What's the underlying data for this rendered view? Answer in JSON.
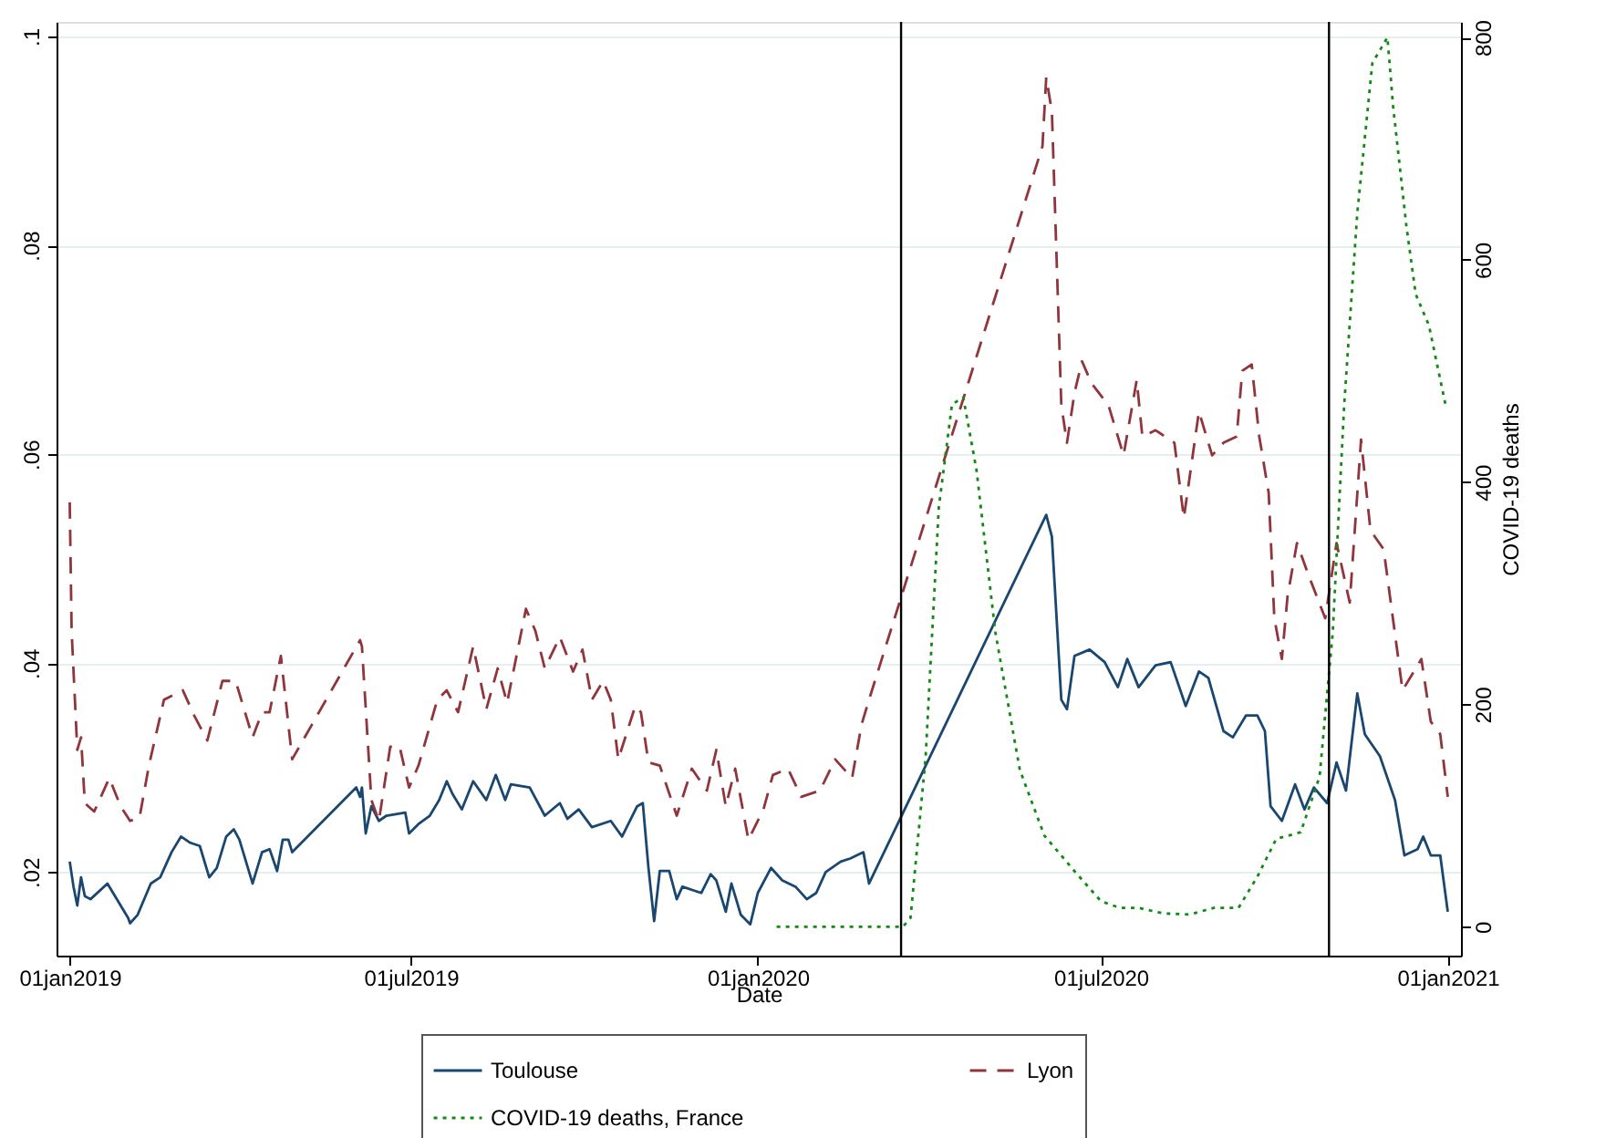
{
  "chart_data": {
    "type": "line",
    "xlabel": "Date",
    "y2label": "COVID-19 deaths",
    "xlim": [
      "2018-12-25",
      "2021-01-08"
    ],
    "xticks": [
      {
        "value": "2019-01-01",
        "label": "01jan2019"
      },
      {
        "value": "2019-07-01",
        "label": "01jul2019"
      },
      {
        "value": "2020-01-01",
        "label": "01jan2020"
      },
      {
        "value": "2020-07-01",
        "label": "01jul2020"
      },
      {
        "value": "2021-01-01",
        "label": "01jan2021"
      }
    ],
    "ylim": [
      0.012,
      0.1014
    ],
    "yticks": [
      {
        "value": 0.02,
        "label": ".02"
      },
      {
        "value": 0.04,
        "label": ".04"
      },
      {
        "value": 0.06,
        "label": ".06"
      },
      {
        "value": 0.08,
        "label": ".08"
      },
      {
        "value": 0.1,
        "label": ".1"
      }
    ],
    "y2lim": [
      -26,
      814
    ],
    "y2ticks": [
      0,
      200,
      400,
      600,
      800
    ],
    "grid": "y",
    "legend": "bottom",
    "ref_lines": [
      {
        "axis": "x",
        "value": "2020-03-17",
        "color": "#000000"
      },
      {
        "axis": "x",
        "value": "2020-10-30",
        "color": "#000000"
      }
    ],
    "series": [
      {
        "name": "Toulouse",
        "color": "#1a476f",
        "line_style": "solid",
        "x": [
          "2019-01-01",
          "2019-01-03",
          "2019-01-05",
          "2019-01-07",
          "2019-01-09",
          "2019-01-12",
          "2019-01-21",
          "2019-01-24",
          "2019-02-01",
          "2019-02-02",
          "2019-02-06",
          "2019-02-13",
          "2019-02-18",
          "2019-02-24",
          "2019-03-01",
          "2019-03-06",
          "2019-03-11",
          "2019-03-16",
          "2019-03-20",
          "2019-03-25",
          "2019-03-29",
          "2019-04-01",
          "2019-04-08",
          "2019-04-13",
          "2019-04-17",
          "2019-04-21",
          "2019-04-24",
          "2019-04-27",
          "2019-04-29",
          "2019-06-02",
          "2019-06-04",
          "2019-06-05",
          "2019-06-07",
          "2019-06-10",
          "2019-06-14",
          "2019-06-18",
          "2019-06-28",
          "2019-06-30",
          "2019-07-05",
          "2019-07-11",
          "2019-07-16",
          "2019-07-20",
          "2019-07-23",
          "2019-07-28",
          "2019-08-03",
          "2019-08-10",
          "2019-08-15",
          "2019-08-20",
          "2019-08-23",
          "2019-09-02",
          "2019-09-10",
          "2019-09-18",
          "2019-09-22",
          "2019-09-28",
          "2019-10-05",
          "2019-10-15",
          "2019-10-21",
          "2019-10-29",
          "2019-11-01",
          "2019-11-04",
          "2019-11-07",
          "2019-11-10",
          "2019-11-15",
          "2019-11-19",
          "2019-11-22",
          "2019-12-02",
          "2019-12-07",
          "2019-12-10",
          "2019-12-15",
          "2019-12-18",
          "2019-12-23",
          "2019-12-28",
          "2020-01-01",
          "2020-01-08",
          "2020-01-14",
          "2020-01-21",
          "2020-01-27",
          "2020-02-01",
          "2020-02-06",
          "2020-02-14",
          "2020-02-19",
          "2020-02-26",
          "2020-02-29",
          "2020-06-02",
          "2020-06-05",
          "2020-06-10",
          "2020-06-13",
          "2020-06-17",
          "2020-06-25",
          "2020-07-03",
          "2020-07-10",
          "2020-07-15",
          "2020-07-21",
          "2020-07-30",
          "2020-08-07",
          "2020-08-15",
          "2020-08-22",
          "2020-08-27",
          "2020-09-04",
          "2020-09-09",
          "2020-09-16",
          "2020-09-22",
          "2020-09-26",
          "2020-09-29",
          "2020-10-05",
          "2020-10-12",
          "2020-10-17",
          "2020-10-22",
          "2020-10-29",
          "2020-11-03",
          "2020-11-08",
          "2020-11-14",
          "2020-11-18",
          "2020-11-26",
          "2020-12-04",
          "2020-12-09",
          "2020-12-16",
          "2020-12-19",
          "2020-12-23",
          "2020-12-28",
          "2021-01-01"
        ],
        "values": [
          0.021,
          0.0186,
          0.0168,
          0.0195,
          0.0177,
          0.0174,
          0.0189,
          0.018,
          0.0156,
          0.0151,
          0.0159,
          0.0189,
          0.0195,
          0.0219,
          0.0234,
          0.0228,
          0.0225,
          0.0195,
          0.0204,
          0.0234,
          0.0241,
          0.0231,
          0.0189,
          0.0219,
          0.0222,
          0.0201,
          0.0231,
          0.0231,
          0.0219,
          0.0281,
          0.0272,
          0.0281,
          0.0237,
          0.0263,
          0.0249,
          0.0254,
          0.0257,
          0.0237,
          0.0246,
          0.0254,
          0.0269,
          0.0287,
          0.0275,
          0.026,
          0.0287,
          0.0269,
          0.0293,
          0.0269,
          0.0284,
          0.0281,
          0.0254,
          0.0266,
          0.0251,
          0.026,
          0.0243,
          0.0249,
          0.0234,
          0.0263,
          0.0266,
          0.0204,
          0.0153,
          0.0201,
          0.0201,
          0.0174,
          0.0186,
          0.018,
          0.0198,
          0.0192,
          0.0162,
          0.0189,
          0.0159,
          0.015,
          0.018,
          0.0204,
          0.0192,
          0.0186,
          0.0174,
          0.018,
          0.02,
          0.021,
          0.0213,
          0.0219,
          0.0189,
          0.0542,
          0.0521,
          0.0365,
          0.0356,
          0.0407,
          0.0413,
          0.0401,
          0.0377,
          0.0404,
          0.0377,
          0.0398,
          0.0401,
          0.0359,
          0.0392,
          0.0386,
          0.0335,
          0.0329,
          0.035,
          0.035,
          0.0335,
          0.0263,
          0.0249,
          0.0284,
          0.026,
          0.0281,
          0.0266,
          0.0305,
          0.0278,
          0.0371,
          0.0332,
          0.0311,
          0.0269,
          0.0216,
          0.0222,
          0.0234,
          0.0216,
          0.0216,
          0.0162
        ]
      },
      {
        "name": "Lyon",
        "color": "#90353b",
        "line_style": "dashed",
        "x": [
          "2019-01-01",
          "2019-01-02",
          "2019-01-05",
          "2019-01-07",
          "2019-01-09",
          "2019-01-14",
          "2019-01-22",
          "2019-01-28",
          "2019-02-02",
          "2019-02-07",
          "2019-02-12",
          "2019-02-20",
          "2019-03-02",
          "2019-03-08",
          "2019-03-15",
          "2019-03-23",
          "2019-03-30",
          "2019-04-08",
          "2019-04-13",
          "2019-04-17",
          "2019-04-23",
          "2019-04-29",
          "2019-06-04",
          "2019-06-05",
          "2019-06-10",
          "2019-06-14",
          "2019-06-20",
          "2019-06-25",
          "2019-06-30",
          "2019-07-05",
          "2019-07-15",
          "2019-07-20",
          "2019-07-26",
          "2019-08-03",
          "2019-08-10",
          "2019-08-16",
          "2019-08-21",
          "2019-08-26",
          "2019-08-31",
          "2019-09-05",
          "2019-09-10",
          "2019-09-18",
          "2019-09-25",
          "2019-09-30",
          "2019-10-05",
          "2019-10-11",
          "2019-10-15",
          "2019-10-19",
          "2019-10-28",
          "2019-10-31",
          "2019-11-04",
          "2019-11-10",
          "2019-11-19",
          "2019-11-27",
          "2019-12-05",
          "2019-12-10",
          "2019-12-15",
          "2019-12-20",
          "2019-12-27",
          "2020-01-04",
          "2020-01-09",
          "2020-01-17",
          "2020-01-24",
          "2020-02-03",
          "2020-02-11",
          "2020-02-20",
          "2020-02-25",
          "2020-02-29",
          "2020-05-31",
          "2020-06-02",
          "2020-06-05",
          "2020-06-10",
          "2020-06-13",
          "2020-06-17",
          "2020-06-21",
          "2020-06-26",
          "2020-07-05",
          "2020-07-13",
          "2020-07-20",
          "2020-07-23",
          "2020-07-30",
          "2020-08-09",
          "2020-08-14",
          "2020-08-22",
          "2020-08-29",
          "2020-09-04",
          "2020-09-11",
          "2020-09-14",
          "2020-09-19",
          "2020-09-23",
          "2020-09-28",
          "2020-10-01",
          "2020-10-05",
          "2020-10-08",
          "2020-10-13",
          "2020-10-19",
          "2020-10-28",
          "2020-11-03",
          "2020-11-10",
          "2020-11-16",
          "2020-11-21",
          "2020-11-28",
          "2020-12-08",
          "2020-12-18",
          "2020-12-23",
          "2020-12-28",
          "2021-01-01"
        ],
        "values": [
          0.0554,
          0.0431,
          0.0317,
          0.0329,
          0.0266,
          0.0258,
          0.029,
          0.0263,
          0.0249,
          0.0252,
          0.0302,
          0.0365,
          0.0374,
          0.035,
          0.0326,
          0.0383,
          0.0383,
          0.0329,
          0.0353,
          0.0353,
          0.0407,
          0.0308,
          0.0422,
          0.0416,
          0.0269,
          0.0249,
          0.032,
          0.032,
          0.0281,
          0.0302,
          0.0365,
          0.0374,
          0.0353,
          0.0416,
          0.0356,
          0.0395,
          0.0362,
          0.0407,
          0.0452,
          0.0431,
          0.0395,
          0.0425,
          0.0392,
          0.0413,
          0.0365,
          0.0383,
          0.0365,
          0.0308,
          0.0359,
          0.0353,
          0.0305,
          0.0302,
          0.0254,
          0.0299,
          0.0278,
          0.0317,
          0.0263,
          0.0299,
          0.0231,
          0.026,
          0.0293,
          0.0299,
          0.0272,
          0.0278,
          0.0308,
          0.029,
          0.0341,
          0.0365,
          0.0895,
          0.0961,
          0.0928,
          0.0647,
          0.0611,
          0.0659,
          0.0689,
          0.0668,
          0.0647,
          0.0599,
          0.0671,
          0.0617,
          0.0623,
          0.0611,
          0.0539,
          0.0641,
          0.0599,
          0.0611,
          0.0617,
          0.068,
          0.0686,
          0.0617,
          0.0563,
          0.0443,
          0.0404,
          0.0464,
          0.0515,
          0.0485,
          0.0443,
          0.0515,
          0.0458,
          0.0614,
          0.0527,
          0.0509,
          0.0374,
          0.0404,
          0.0344,
          0.0332,
          0.0272
        ]
      },
      {
        "name": "COVID-19 deaths, France",
        "color": "#138a13",
        "line_style": "dotted",
        "axis": "y2",
        "x": [
          "2020-01-11",
          "2020-03-18",
          "2020-03-22",
          "2020-03-30",
          "2020-04-06",
          "2020-04-13",
          "2020-04-19",
          "2020-04-26",
          "2020-05-06",
          "2020-05-19",
          "2020-06-01",
          "2020-06-18",
          "2020-07-01",
          "2020-07-11",
          "2020-07-21",
          "2020-08-03",
          "2020-08-17",
          "2020-08-30",
          "2020-09-12",
          "2020-09-22",
          "2020-10-02",
          "2020-10-15",
          "2020-10-25",
          "2020-11-01",
          "2020-11-07",
          "2020-11-14",
          "2020-11-22",
          "2020-11-30",
          "2020-12-03",
          "2020-12-10",
          "2020-12-15",
          "2020-12-22",
          "2020-12-31"
        ],
        "values": [
          0,
          0,
          8,
          152,
          377,
          470,
          476,
          411,
          265,
          141,
          82,
          48,
          23,
          17,
          17,
          12,
          11,
          17,
          17,
          45,
          79,
          85,
          135,
          265,
          468,
          642,
          777,
          800,
          738,
          631,
          569,
          541,
          468
        ]
      }
    ]
  }
}
